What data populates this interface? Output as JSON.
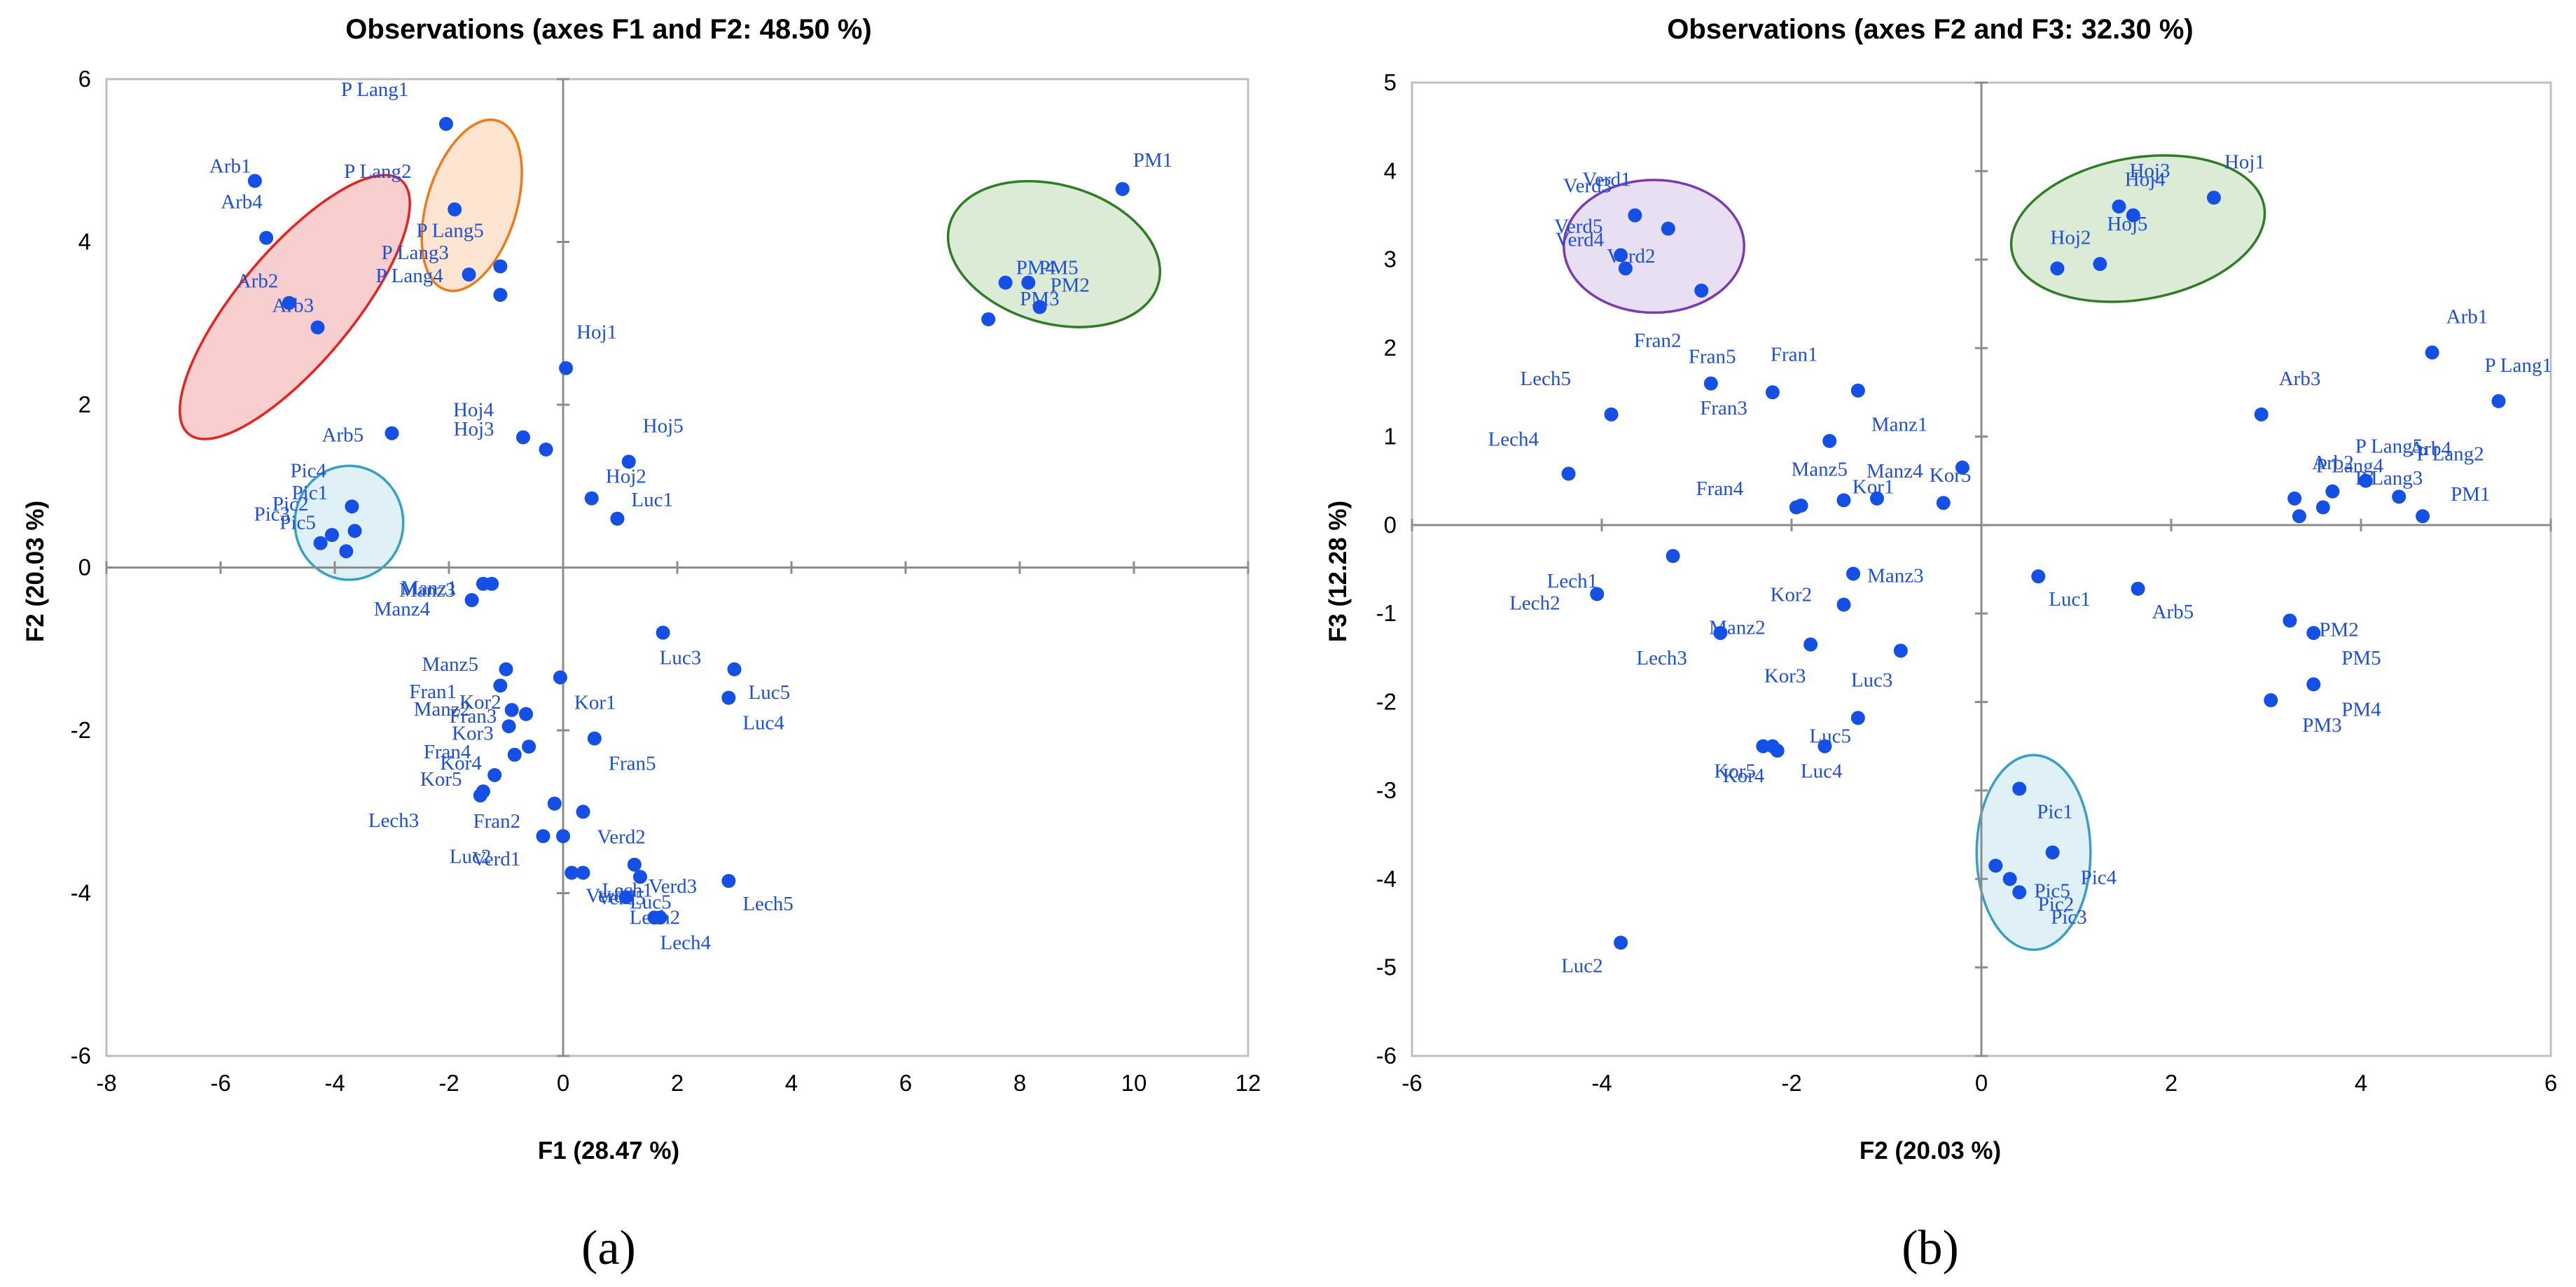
{
  "colors": {
    "point": "#1450e6",
    "label": "#1f4fd8",
    "axis": "#8c8c8c",
    "frame": "#bfbfbf"
  },
  "chart_data": [
    {
      "type": "scatter",
      "panel_label": "(a)",
      "title": "Observations (axes F1 and F2: 48.50 %)",
      "xlabel": "F1 (28.47 %)",
      "ylabel": "F2 (20.03 %)",
      "xlim": [
        -8,
        12
      ],
      "ylim": [
        -6,
        6
      ],
      "xticks": [
        -8,
        -6,
        -4,
        -2,
        0,
        2,
        4,
        6,
        8,
        10,
        12
      ],
      "yticks": [
        -6,
        -4,
        -2,
        0,
        2,
        4,
        6
      ],
      "ellipses": [
        {
          "name": "Arb",
          "cx": -4.7,
          "cy": 3.2,
          "rx": 2.9,
          "ry": 0.7,
          "angle": -50,
          "fill": "#f7c6c6",
          "stroke": "#e8221e"
        },
        {
          "name": "P Lang",
          "cx": -1.6,
          "cy": 4.45,
          "rx": 1.55,
          "ry": 0.55,
          "angle": -73,
          "fill": "#fde0c9",
          "stroke": "#ef7a1a"
        },
        {
          "name": "PM",
          "cx": 8.6,
          "cy": 3.85,
          "rx": 1.9,
          "ry": 0.85,
          "angle": 16,
          "fill": "#d5e8cf",
          "stroke": "#2f7d24"
        },
        {
          "name": "Pic",
          "cx": -3.75,
          "cy": 0.55,
          "rx": 0.95,
          "ry": 0.7,
          "angle": 0,
          "fill": "#d9edf5",
          "stroke": "#3aa0c0"
        }
      ],
      "points": [
        {
          "label": "Arb1",
          "x": -5.4,
          "y": 4.75,
          "dx": -65,
          "dy": -12
        },
        {
          "label": "Arb4",
          "x": -5.2,
          "y": 4.05,
          "dx": -65,
          "dy": -42
        },
        {
          "label": "Arb2",
          "x": -4.8,
          "y": 3.25,
          "dx": -75,
          "dy": -22
        },
        {
          "label": "Arb3",
          "x": -4.3,
          "y": 2.95,
          "dx": -65,
          "dy": -22
        },
        {
          "label": "Arb5",
          "x": -3.0,
          "y": 1.65,
          "dx": -100,
          "dy": 12
        },
        {
          "label": "P Lang1",
          "x": -2.05,
          "y": 5.45,
          "dx": -150,
          "dy": -40
        },
        {
          "label": "P Lang2",
          "x": -1.9,
          "y": 4.4,
          "dx": -158,
          "dy": -45
        },
        {
          "label": "P Lang5",
          "x": -1.1,
          "y": 3.7,
          "dx": -120,
          "dy": -42
        },
        {
          "label": "P Lang3",
          "x": -1.65,
          "y": 3.6,
          "dx": -125,
          "dy": -22
        },
        {
          "label": "P Lang4",
          "x": -1.1,
          "y": 3.35,
          "dx": -178,
          "dy": -18
        },
        {
          "label": "PM1",
          "x": 9.8,
          "y": 4.65,
          "dx": 15,
          "dy": -32
        },
        {
          "label": "PM4",
          "x": 7.75,
          "y": 3.5,
          "dx": 15,
          "dy": -12
        },
        {
          "label": "PM5",
          "x": 8.15,
          "y": 3.5,
          "dx": 15,
          "dy": -12
        },
        {
          "label": "PM3",
          "x": 7.45,
          "y": 3.05,
          "dx": 45,
          "dy": -20
        },
        {
          "label": "PM2",
          "x": 8.35,
          "y": 3.2,
          "dx": 15,
          "dy": -22
        },
        {
          "label": "Hoj1",
          "x": 0.05,
          "y": 2.45,
          "dx": 15,
          "dy": -42
        },
        {
          "label": "Hoj4",
          "x": -0.7,
          "y": 1.6,
          "dx": -100,
          "dy": -30
        },
        {
          "label": "Hoj3",
          "x": -0.3,
          "y": 1.45,
          "dx": -132,
          "dy": -20
        },
        {
          "label": "Hoj5",
          "x": 1.15,
          "y": 1.3,
          "dx": 20,
          "dy": -42
        },
        {
          "label": "Hoj2",
          "x": 0.5,
          "y": 0.85,
          "dx": 20,
          "dy": -22
        },
        {
          "label": "Luc1",
          "x": 0.95,
          "y": 0.6,
          "dx": 20,
          "dy": -18
        },
        {
          "label": "Pic4",
          "x": -3.7,
          "y": 0.75,
          "dx": -88,
          "dy": -42
        },
        {
          "label": "Pic1",
          "x": -3.65,
          "y": 0.45,
          "dx": -90,
          "dy": -45
        },
        {
          "label": "Pic3",
          "x": -4.25,
          "y": 0.3,
          "dx": -95,
          "dy": -32
        },
        {
          "label": "Pic2",
          "x": -4.05,
          "y": 0.4,
          "dx": -85,
          "dy": -35
        },
        {
          "label": "Pic5",
          "x": -3.8,
          "y": 0.2,
          "dx": -95,
          "dy": -32
        },
        {
          "label": "Manz1",
          "x": -1.25,
          "y": -0.2,
          "dx": -130,
          "dy": 15
        },
        {
          "label": "Manz3",
          "x": -1.4,
          "y": -0.2,
          "dx": -120,
          "dy": 18
        },
        {
          "label": "Manz4",
          "x": -1.6,
          "y": -0.4,
          "dx": -140,
          "dy": 22
        },
        {
          "label": "Manz5",
          "x": -1.0,
          "y": -1.25,
          "dx": -120,
          "dy": 2
        },
        {
          "label": "Fran1",
          "x": -1.1,
          "y": -1.45,
          "dx": -130,
          "dy": 18
        },
        {
          "label": "Kor2",
          "x": -0.65,
          "y": -1.8,
          "dx": -95,
          "dy": -8
        },
        {
          "label": "Manz2",
          "x": -0.9,
          "y": -1.75,
          "dx": -140,
          "dy": 8
        },
        {
          "label": "Fran3",
          "x": -0.95,
          "y": -1.95,
          "dx": -85,
          "dy": -5
        },
        {
          "label": "Kor3",
          "x": -0.6,
          "y": -2.2,
          "dx": -110,
          "dy": -10
        },
        {
          "label": "Fran4",
          "x": -0.85,
          "y": -2.3,
          "dx": -130,
          "dy": 5
        },
        {
          "label": "Kor4",
          "x": -1.2,
          "y": -2.55,
          "dx": -78,
          "dy": -8
        },
        {
          "label": "Kor5",
          "x": -1.4,
          "y": -2.75,
          "dx": -90,
          "dy": -8
        },
        {
          "label": "Kor1",
          "x": -0.05,
          "y": -1.35,
          "dx": 20,
          "dy": 45
        },
        {
          "label": "Fran5",
          "x": 0.55,
          "y": -2.1,
          "dx": 20,
          "dy": 45
        },
        {
          "label": "Lech3",
          "x": -1.45,
          "y": -2.8,
          "dx": -160,
          "dy": 45
        },
        {
          "label": "Fran2",
          "x": -0.35,
          "y": -3.3,
          "dx": -100,
          "dy": -12
        },
        {
          "label": "Luc2",
          "x": -0.15,
          "y": -2.9,
          "dx": -150,
          "dy": 85
        },
        {
          "label": "Verd1",
          "x": 0.0,
          "y": -3.3,
          "dx": -130,
          "dy": 42
        },
        {
          "label": "Verd2",
          "x": 0.35,
          "y": -3.0,
          "dx": 20,
          "dy": 45
        },
        {
          "label": "Verd3",
          "x": 1.25,
          "y": -3.65,
          "dx": 20,
          "dy": 40
        },
        {
          "label": "Verd4",
          "x": 0.15,
          "y": -3.75,
          "dx": 20,
          "dy": 42
        },
        {
          "label": "Verd5",
          "x": 0.35,
          "y": -3.75,
          "dx": 20,
          "dy": 45
        },
        {
          "label": "Luc5",
          "x": 1.35,
          "y": -3.8,
          "dx": -15,
          "dy": 45
        },
        {
          "label": "Lech2",
          "x": 1.1,
          "y": -4.05,
          "dx": 5,
          "dy": 38
        },
        {
          "label": "Lech1",
          "x": 1.6,
          "y": -4.3,
          "dx": -75,
          "dy": -30
        },
        {
          "label": "Lech4",
          "x": 1.7,
          "y": -4.3,
          "dx": 0,
          "dy": 45
        },
        {
          "label": "Lech5",
          "x": 2.9,
          "y": -3.85,
          "dx": 20,
          "dy": 42
        },
        {
          "label": "Luc3",
          "x": 1.75,
          "y": -0.8,
          "dx": -5,
          "dy": 45
        },
        {
          "label": "Luc5",
          "x": 3.0,
          "y": -1.25,
          "dx": 20,
          "dy": 42
        },
        {
          "label": "Luc4",
          "x": 2.9,
          "y": -1.6,
          "dx": 20,
          "dy": 45
        }
      ]
    },
    {
      "type": "scatter",
      "panel_label": "(b)",
      "title": "Observations (axes F2 and F3: 32.30 %)",
      "xlabel": "F2 (20.03 %)",
      "ylabel": "F3 (12.28 %)",
      "xlim": [
        -6,
        6
      ],
      "ylim": [
        -6,
        5
      ],
      "xticks": [
        -6,
        -4,
        -2,
        0,
        2,
        4,
        6
      ],
      "yticks": [
        -6,
        -5,
        -4,
        -3,
        -2,
        -1,
        0,
        1,
        2,
        3,
        4,
        5
      ],
      "ellipses": [
        {
          "name": "Verd",
          "cx": -3.45,
          "cy": 3.15,
          "rx": 0.95,
          "ry": 0.75,
          "angle": 0,
          "fill": "#e4d9f0",
          "stroke": "#7a3cb0"
        },
        {
          "name": "Hoj",
          "cx": 1.65,
          "cy": 3.35,
          "rx": 1.35,
          "ry": 0.8,
          "angle": -10,
          "fill": "#d5e8cf",
          "stroke": "#2f7d24"
        },
        {
          "name": "Pic",
          "cx": 0.55,
          "cy": -3.7,
          "rx": 0.6,
          "ry": 1.1,
          "angle": 0,
          "fill": "#d9edf5",
          "stroke": "#3aa0c0"
        }
      ],
      "points": [
        {
          "label": "Verd3",
          "x": -3.3,
          "y": 3.35,
          "dx": -150,
          "dy": -52
        },
        {
          "label": "Verd1",
          "x": -3.65,
          "y": 3.5,
          "dx": -75,
          "dy": -42
        },
        {
          "label": "Verd5",
          "x": -3.8,
          "y": 3.05,
          "dx": -95,
          "dy": -32
        },
        {
          "label": "Verd4",
          "x": -3.75,
          "y": 2.9,
          "dx": -100,
          "dy": -32
        },
        {
          "label": "Verd2",
          "x": -2.95,
          "y": 2.65,
          "dx": -135,
          "dy": -40
        },
        {
          "label": "Hoj3",
          "x": 1.45,
          "y": 3.6,
          "dx": 15,
          "dy": -42
        },
        {
          "label": "Hoj4",
          "x": 1.6,
          "y": 3.5,
          "dx": -12,
          "dy": -42
        },
        {
          "label": "Hoj1",
          "x": 2.45,
          "y": 3.7,
          "dx": 15,
          "dy": -42
        },
        {
          "label": "Hoj2",
          "x": 0.8,
          "y": 2.9,
          "dx": -10,
          "dy": -35
        },
        {
          "label": "Hoj5",
          "x": 1.25,
          "y": 2.95,
          "dx": 10,
          "dy": -48
        },
        {
          "label": "Arb1",
          "x": 4.75,
          "y": 1.95,
          "dx": 20,
          "dy": -42
        },
        {
          "label": "P Lang1",
          "x": 5.45,
          "y": 1.4,
          "dx": -20,
          "dy": -42
        },
        {
          "label": "Arb3",
          "x": 2.95,
          "y": 1.25,
          "dx": 25,
          "dy": -42
        },
        {
          "label": "Arb2",
          "x": 3.3,
          "y": 0.3,
          "dx": 25,
          "dy": -42
        },
        {
          "label": "P Lang3",
          "x": 3.35,
          "y": 0.1,
          "dx": 80,
          "dy": -45
        },
        {
          "label": "P Lang4",
          "x": 3.6,
          "y": 0.2,
          "dx": -10,
          "dy": -50
        },
        {
          "label": "Arb4",
          "x": 3.7,
          "y": 0.38,
          "dx": 110,
          "dy": -52
        },
        {
          "label": "P Lang5",
          "x": 4.05,
          "y": 0.5,
          "dx": -15,
          "dy": -40
        },
        {
          "label": "P Lang2",
          "x": 4.4,
          "y": 0.32,
          "dx": 25,
          "dy": -52
        },
        {
          "label": "PM1",
          "x": 4.65,
          "y": 0.1,
          "dx": 40,
          "dy": -22
        },
        {
          "label": "Fran2",
          "x": -2.85,
          "y": 1.6,
          "dx": -110,
          "dy": -52
        },
        {
          "label": "Fran5",
          "x": -2.2,
          "y": 1.5,
          "dx": -120,
          "dy": -42
        },
        {
          "label": "Fran1",
          "x": -1.3,
          "y": 1.52,
          "dx": -125,
          "dy": -42
        },
        {
          "label": "Fran3",
          "x": -1.6,
          "y": 0.95,
          "dx": -185,
          "dy": -38
        },
        {
          "label": "Lech5",
          "x": -3.9,
          "y": 1.25,
          "dx": -130,
          "dy": -42
        },
        {
          "label": "Lech4",
          "x": -4.35,
          "y": 0.58,
          "dx": -115,
          "dy": -40
        },
        {
          "label": "Manz1",
          "x": -0.2,
          "y": 0.65,
          "dx": -130,
          "dy": -52
        },
        {
          "label": "Manz5",
          "x": -1.45,
          "y": 0.28,
          "dx": -75,
          "dy": -35
        },
        {
          "label": "Kor1",
          "x": -1.95,
          "y": 0.2,
          "dx": 80,
          "dy": -20
        },
        {
          "label": "Fran4",
          "x": -1.9,
          "y": 0.22,
          "dx": -150,
          "dy": -15
        },
        {
          "label": "Manz4",
          "x": -1.1,
          "y": 0.3,
          "dx": -15,
          "dy": -30
        },
        {
          "label": "Kor5",
          "x": -0.4,
          "y": 0.25,
          "dx": -20,
          "dy": -30
        },
        {
          "label": "Lech1",
          "x": -3.25,
          "y": -0.35,
          "dx": -180,
          "dy": 45
        },
        {
          "label": "Lech2",
          "x": -4.05,
          "y": -0.78,
          "dx": -125,
          "dy": 22
        },
        {
          "label": "Manz3",
          "x": -1.35,
          "y": -0.55,
          "dx": 20,
          "dy": 12
        },
        {
          "label": "Kor2",
          "x": -1.45,
          "y": -0.9,
          "dx": -105,
          "dy": -5
        },
        {
          "label": "Manz2",
          "x": -1.8,
          "y": -1.35,
          "dx": -145,
          "dy": -15
        },
        {
          "label": "Lech3",
          "x": -2.75,
          "y": -1.22,
          "dx": -120,
          "dy": 45
        },
        {
          "label": "Kor3",
          "x": -0.85,
          "y": -1.42,
          "dx": -195,
          "dy": 45
        },
        {
          "label": "Luc3",
          "x": -1.3,
          "y": -2.18,
          "dx": -10,
          "dy": -45
        },
        {
          "label": "Luc5",
          "x": -1.65,
          "y": -2.5,
          "dx": -22,
          "dy": -5
        },
        {
          "label": "Kor5",
          "x": -2.3,
          "y": -2.5,
          "dx": -70,
          "dy": 45
        },
        {
          "label": "Kor4",
          "x": -2.15,
          "y": -2.55,
          "dx": -78,
          "dy": 45
        },
        {
          "label": "Luc4",
          "x": -2.2,
          "y": -2.5,
          "dx": 40,
          "dy": 45
        },
        {
          "label": "Luc1",
          "x": 0.6,
          "y": -0.58,
          "dx": 15,
          "dy": 42
        },
        {
          "label": "Arb5",
          "x": 1.65,
          "y": -0.72,
          "dx": 20,
          "dy": 42
        },
        {
          "label": "PM2",
          "x": 3.25,
          "y": -1.08,
          "dx": 42,
          "dy": 22
        },
        {
          "label": "PM5",
          "x": 3.5,
          "y": -1.22,
          "dx": 40,
          "dy": 45
        },
        {
          "label": "PM4",
          "x": 3.5,
          "y": -1.8,
          "dx": 40,
          "dy": 45
        },
        {
          "label": "PM3",
          "x": 3.05,
          "y": -1.98,
          "dx": 45,
          "dy": 45
        },
        {
          "label": "Luc2",
          "x": -3.8,
          "y": -4.72,
          "dx": -85,
          "dy": 42
        },
        {
          "label": "Pic1",
          "x": 0.4,
          "y": -2.98,
          "dx": 25,
          "dy": 42
        },
        {
          "label": "Pic4",
          "x": 0.75,
          "y": -3.7,
          "dx": 40,
          "dy": 45
        },
        {
          "label": "Pic5",
          "x": 0.15,
          "y": -3.85,
          "dx": 55,
          "dy": 45
        },
        {
          "label": "Pic2",
          "x": 0.3,
          "y": -4.0,
          "dx": 40,
          "dy": 45
        },
        {
          "label": "Pic3",
          "x": 0.4,
          "y": -4.15,
          "dx": 45,
          "dy": 45
        }
      ]
    }
  ]
}
